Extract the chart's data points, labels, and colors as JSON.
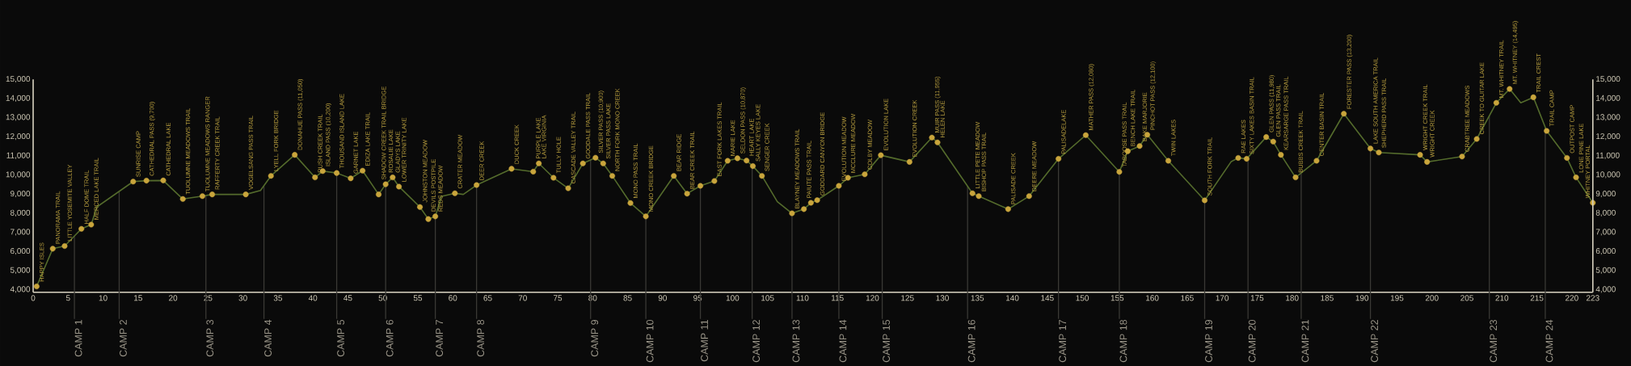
{
  "chart_data": {
    "type": "line",
    "xlim": [
      0,
      223
    ],
    "xticks": [
      0,
      5,
      10,
      15,
      20,
      25,
      30,
      35,
      40,
      45,
      50,
      55,
      60,
      65,
      70,
      75,
      80,
      85,
      90,
      95,
      100,
      105,
      110,
      115,
      120,
      125,
      130,
      135,
      140,
      145,
      150,
      155,
      160,
      165,
      170,
      175,
      180,
      185,
      190,
      195,
      200,
      205,
      210,
      215,
      220,
      223
    ],
    "ylim": [
      3860,
      15000
    ],
    "yticks": [
      {
        "value": 4000,
        "label": "4,000"
      },
      {
        "value": 5000,
        "label": "5,000"
      },
      {
        "value": 6000,
        "label": "6,000"
      },
      {
        "value": 7000,
        "label": "7,000"
      },
      {
        "value": 8000,
        "label": "8,000"
      },
      {
        "value": 9000,
        "label": "9,000"
      },
      {
        "value": 10000,
        "label": "10,000"
      },
      {
        "value": 11000,
        "label": "11,000"
      },
      {
        "value": 12000,
        "label": "12,000"
      },
      {
        "value": 13000,
        "label": "13,000"
      },
      {
        "value": 14000,
        "label": "14,000"
      },
      {
        "value": 15000,
        "label": "15,000"
      }
    ],
    "y2lim": [
      3860,
      15000
    ],
    "y2ticks": [
      {
        "value": 4000,
        "label": "4,000"
      },
      {
        "value": 5000,
        "label": "5,000"
      },
      {
        "value": 6000,
        "label": "6,000"
      },
      {
        "value": 7000,
        "label": "7,000"
      },
      {
        "value": 8000,
        "label": "8,000"
      },
      {
        "value": 9000,
        "label": "9,000"
      },
      {
        "value": 10000,
        "label": "10,000"
      },
      {
        "value": 11000,
        "label": "11,000"
      },
      {
        "value": 12000,
        "label": "12,000"
      },
      {
        "value": 13000,
        "label": "13,000"
      },
      {
        "value": 14000,
        "label": "14,000"
      },
      {
        "value": 15000,
        "label": "15,000"
      }
    ],
    "series": [
      {
        "marker": "none",
        "color": "#546b2c",
        "x": [
          0.5,
          2.8,
          4.5,
          6.9,
          8.3,
          9.1,
          14.3,
          16.2,
          18.6,
          21.4,
          24.2,
          25.6,
          30.4,
          32.5,
          34.0,
          37.4,
          40.3,
          41.4,
          43.4,
          45.4,
          47.1,
          49.4,
          50.4,
          51.4,
          52.3,
          55.3,
          56.5,
          57.5,
          58.4,
          60.3,
          61.5,
          63.4,
          68.4,
          71.5,
          72.3,
          74.4,
          76.5,
          78.6,
          80.4,
          81.5,
          82.8,
          85.4,
          87.6,
          91.6,
          93.5,
          95.4,
          97.4,
          99.3,
          100.7,
          102.0,
          102.9,
          104.2,
          106.4,
          108.5,
          110.2,
          111.2,
          112.1,
          115.2,
          116.5,
          118.9,
          121.2,
          125.3,
          128.5,
          129.3,
          134.3,
          135.2,
          139.4,
          142.4,
          146.6,
          150.5,
          155.3,
          156.5,
          158.2,
          159.3,
          162.3,
          167.5,
          171.3,
          172.3,
          173.5,
          176.3,
          177.3,
          178.4,
          180.5,
          183.5,
          187.4,
          191.2,
          192.4,
          198.3,
          199.3,
          204.3,
          206.4,
          209.2,
          211.1,
          212.7,
          214.5,
          216.4,
          219.3,
          220.6,
          223
        ],
        "values": [
          4170,
          6140,
          6280,
          7180,
          7400,
          8320,
          9650,
          9700,
          9710,
          8740,
          8890,
          8980,
          8980,
          9190,
          9950,
          11050,
          9870,
          10200,
          10100,
          9820,
          10220,
          8980,
          9510,
          9870,
          9390,
          8320,
          7690,
          7830,
          8880,
          9040,
          8980,
          9470,
          10320,
          10170,
          10600,
          9850,
          9300,
          10600,
          10900,
          10600,
          9950,
          8530,
          7830,
          9950,
          9020,
          9430,
          9680,
          10740,
          10870,
          10750,
          10460,
          9950,
          8600,
          7990,
          8210,
          8540,
          8680,
          9430,
          9850,
          10030,
          11030,
          10680,
          11955,
          11700,
          9040,
          8890,
          8210,
          8890,
          10840,
          12080,
          10160,
          11240,
          11510,
          12100,
          10740,
          8670,
          10700,
          10890,
          10840,
          11980,
          11740,
          11050,
          9870,
          10740,
          13200,
          11380,
          11170,
          11050,
          10680,
          10960,
          11880,
          13770,
          14495,
          13770,
          14060,
          12300,
          10890,
          9870,
          8540
        ]
      },
      {
        "type": "scatter",
        "marker": "circle",
        "color": "#c9a53c",
        "x": [
          0.5,
          2.8,
          4.5,
          6.9,
          8.3,
          14.3,
          16.2,
          18.6,
          21.4,
          24.2,
          25.6,
          30.4,
          34.0,
          37.4,
          40.3,
          41.4,
          43.4,
          45.4,
          47.1,
          49.4,
          50.4,
          51.4,
          52.3,
          55.3,
          56.5,
          57.5,
          60.3,
          63.4,
          68.4,
          71.5,
          72.3,
          74.4,
          76.5,
          78.6,
          80.4,
          81.5,
          82.8,
          85.4,
          87.6,
          91.6,
          93.5,
          95.4,
          97.4,
          99.3,
          100.7,
          102.0,
          102.9,
          104.2,
          108.5,
          110.2,
          111.2,
          112.1,
          115.2,
          116.5,
          118.9,
          121.2,
          125.3,
          128.5,
          129.3,
          134.3,
          135.2,
          139.4,
          142.4,
          146.6,
          150.5,
          155.3,
          156.5,
          158.2,
          159.3,
          162.3,
          167.5,
          172.3,
          173.5,
          176.3,
          177.3,
          178.4,
          180.5,
          183.5,
          187.4,
          191.2,
          192.4,
          198.3,
          199.3,
          204.3,
          206.4,
          209.2,
          211.1,
          214.5,
          216.4,
          219.3,
          220.6,
          223
        ],
        "values": [
          4170,
          6140,
          6280,
          7180,
          7400,
          9650,
          9700,
          9710,
          8740,
          8890,
          8980,
          8980,
          9950,
          11050,
          9870,
          10200,
          10100,
          9820,
          10220,
          8980,
          9510,
          9870,
          9390,
          8320,
          7690,
          7830,
          9040,
          9470,
          10320,
          10170,
          10600,
          9850,
          9300,
          10600,
          10900,
          10600,
          9950,
          8530,
          7830,
          9950,
          9020,
          9430,
          9680,
          10740,
          10870,
          10750,
          10460,
          9950,
          7990,
          8210,
          8540,
          8680,
          9430,
          9850,
          10030,
          11030,
          10680,
          11955,
          11700,
          9040,
          8890,
          8210,
          8890,
          10840,
          12080,
          10160,
          11240,
          11510,
          12100,
          10740,
          8670,
          10890,
          10840,
          11980,
          11740,
          11050,
          9870,
          10740,
          13200,
          11380,
          11170,
          11050,
          10680,
          10960,
          11880,
          13770,
          14495,
          14060,
          12300,
          10890,
          9870,
          8540
        ]
      }
    ],
    "annotations": [
      {
        "text": "HAPPY ISLES",
        "x": 0.5,
        "y": 4170
      },
      {
        "text": "PANORAMA TRAIL",
        "x": 2.8,
        "y": 6140
      },
      {
        "text": "LITTLE YOSEMITE VALLEY",
        "x": 4.5,
        "y": 6280
      },
      {
        "text": "HALF DOME TRAIL",
        "x": 6.9,
        "y": 7180
      },
      {
        "text": "MERCED LAKE TRAIL",
        "x": 8.3,
        "y": 7400
      },
      {
        "text": "SUNRISE CAMP",
        "x": 14.3,
        "y": 9650
      },
      {
        "text": "CATHEDRAL PASS (9,700)",
        "x": 16.2,
        "y": 9700
      },
      {
        "text": "CATHEDRAL LAKE",
        "x": 18.6,
        "y": 9710
      },
      {
        "text": "TUOLUMNE MEADOWS TRAIL",
        "x": 21.4,
        "y": 8740
      },
      {
        "text": "TUOLUMNE MEADOWS RANGER",
        "x": 24.2,
        "y": 8890
      },
      {
        "text": "RAFFERTY CREEK TRAIL",
        "x": 25.6,
        "y": 8980
      },
      {
        "text": "VOGELSANG PASS TRAIL",
        "x": 30.4,
        "y": 8980
      },
      {
        "text": "LYELL FORK BRIDGE",
        "x": 34.0,
        "y": 9950
      },
      {
        "text": "DONAHUE PASS (11,050)",
        "x": 37.4,
        "y": 11050
      },
      {
        "text": "RUSH CREEK TRAIL",
        "x": 40.3,
        "y": 9870
      },
      {
        "text": "ISLAND PASS (10,200)",
        "x": 41.4,
        "y": 10200
      },
      {
        "text": "THOUSAND ISLAND LAKE",
        "x": 43.4,
        "y": 10100
      },
      {
        "text": "GARNET LAKE",
        "x": 45.4,
        "y": 9820
      },
      {
        "text": "EDIZA LAKE TRAIL",
        "x": 47.1,
        "y": 10220
      },
      {
        "text": "SHADOW CREEK TRAIL BRIDGE",
        "x": 49.4,
        "y": 8980
      },
      {
        "text": "ROSALIE LAKE",
        "x": 50.4,
        "y": 9510
      },
      {
        "text": "GLADYS LAKE",
        "x": 51.4,
        "y": 9870
      },
      {
        "text": "LOWER TRINITY LAKE",
        "x": 52.3,
        "y": 9390
      },
      {
        "text": "JOHNSTON MEADOW",
        "x": 55.3,
        "y": 8320
      },
      {
        "text": "DEVILS POSTPILE",
        "x": 56.5,
        "y": 7690
      },
      {
        "text": "REDS MEADOW",
        "x": 57.5,
        "y": 7830
      },
      {
        "text": "CRATER MEADOW",
        "x": 60.3,
        "y": 9040
      },
      {
        "text": "DEER CREEK",
        "x": 63.4,
        "y": 9470
      },
      {
        "text": "DUCK CREEK",
        "x": 68.4,
        "y": 10320
      },
      {
        "text": "PURPLE LAKE",
        "x": 71.5,
        "y": 10170
      },
      {
        "text": "LAKE VIRGINIA",
        "x": 72.3,
        "y": 10600
      },
      {
        "text": "TULLY HOLE",
        "x": 74.4,
        "y": 9850
      },
      {
        "text": "CASCADE VALLEY TRAIL",
        "x": 76.5,
        "y": 9300
      },
      {
        "text": "GOODALE PASS TRAIL",
        "x": 78.6,
        "y": 10600
      },
      {
        "text": "SILVER PASS (10,900)",
        "x": 80.4,
        "y": 10900
      },
      {
        "text": "SILVER PASS LAKE",
        "x": 81.5,
        "y": 10600
      },
      {
        "text": "NORTH FORK MONO CREEK",
        "x": 82.8,
        "y": 9950
      },
      {
        "text": "MONO PASS TRAIL",
        "x": 85.4,
        "y": 8530
      },
      {
        "text": "MONO CREEK BRIDGE",
        "x": 87.6,
        "y": 7830
      },
      {
        "text": "BEAR RIDGE",
        "x": 91.6,
        "y": 9950
      },
      {
        "text": "BEAR CREEK TRAIL",
        "x": 93.5,
        "y": 9020
      },
      {
        "text": "EAST FORK LAKES TRAIL",
        "x": 97.4,
        "y": 9680
      },
      {
        "text": "MARIE LAKE",
        "x": 99.3,
        "y": 10740
      },
      {
        "text": "SELDON PASS (10,870)",
        "x": 100.7,
        "y": 10870
      },
      {
        "text": "HEART LAKE",
        "x": 102.0,
        "y": 10750
      },
      {
        "text": "SALLY KEYES LAKE",
        "x": 102.9,
        "y": 10460
      },
      {
        "text": "SENGER CREEK",
        "x": 104.2,
        "y": 9950
      },
      {
        "text": "BLAYNEY MEADOWS TRAIL",
        "x": 108.5,
        "y": 7990
      },
      {
        "text": "PAIUTE PASS TRAIL",
        "x": 110.2,
        "y": 8210
      },
      {
        "text": "GODDARD CANYON BRIDGE",
        "x": 112.1,
        "y": 8680
      },
      {
        "text": "EVOLUTION MEADOW",
        "x": 115.2,
        "y": 9430
      },
      {
        "text": "MCCLURE MEADOW",
        "x": 116.5,
        "y": 9850
      },
      {
        "text": "COLBY MEADOW",
        "x": 118.9,
        "y": 10030
      },
      {
        "text": "EVOLUTION LAKE",
        "x": 121.2,
        "y": 11030
      },
      {
        "text": "EVOLUTION CREEK",
        "x": 125.3,
        "y": 10680
      },
      {
        "text": "MUIR PASS (11,955)",
        "x": 128.5,
        "y": 11955
      },
      {
        "text": "HELEN LAKE",
        "x": 129.3,
        "y": 11700
      },
      {
        "text": "LITTLE PETE MEADOW",
        "x": 134.3,
        "y": 9040
      },
      {
        "text": "BISHOP PASS TRAIL",
        "x": 135.2,
        "y": 8890
      },
      {
        "text": "PALISADE CREEK",
        "x": 139.4,
        "y": 8210
      },
      {
        "text": "DEERE MEADOW",
        "x": 142.4,
        "y": 8890
      },
      {
        "text": "PALISADELAKE",
        "x": 146.6,
        "y": 10840
      },
      {
        "text": "MATHER PASS (12,080)",
        "x": 150.5,
        "y": 12080
      },
      {
        "text": "TABOOSE PASS TRAIL",
        "x": 155.3,
        "y": 10160
      },
      {
        "text": "BENCH LAKE TRAIL",
        "x": 156.5,
        "y": 11240
      },
      {
        "text": "BAKE MARJORIE",
        "x": 158.2,
        "y": 11510
      },
      {
        "text": "PINCHOT PASS (12,100)",
        "x": 159.3,
        "y": 12100
      },
      {
        "text": "TWIN LAKES",
        "x": 162.3,
        "y": 10740
      },
      {
        "text": "SOUTH FORK TRAIL",
        "x": 167.5,
        "y": 8670
      },
      {
        "text": "RAE LAKES",
        "x": 172.3,
        "y": 10890
      },
      {
        "text": "SIXTY LAKES BASIN TRAIL",
        "x": 173.5,
        "y": 10840
      },
      {
        "text": "GLEN PASS (11,980)",
        "x": 176.3,
        "y": 11980
      },
      {
        "text": "GLEN PASS TRAIL",
        "x": 177.3,
        "y": 11740
      },
      {
        "text": "KEARSARGE PASS TRAIL",
        "x": 178.4,
        "y": 11050
      },
      {
        "text": "BUBBS CREEK TRAIL",
        "x": 180.5,
        "y": 9870
      },
      {
        "text": "CENTER BASIN TRAIL",
        "x": 183.5,
        "y": 10740
      },
      {
        "text": "FORESTER PASS (13,200)",
        "x": 187.4,
        "y": 13200
      },
      {
        "text": "LAKE SOUTH AMERICA TRAIL",
        "x": 191.2,
        "y": 11380
      },
      {
        "text": "SHEPHERD PASS TRAIL",
        "x": 192.4,
        "y": 11170
      },
      {
        "text": "WRIGHT CREEK TRAIL",
        "x": 198.3,
        "y": 11050
      },
      {
        "text": "WRIGHT CREEK",
        "x": 199.3,
        "y": 10680
      },
      {
        "text": "CRABTREE MEADOWS",
        "x": 204.3,
        "y": 10960
      },
      {
        "text": "CREEK TO GUITAR LAKE",
        "x": 206.4,
        "y": 11880
      },
      {
        "text": "MT. WHITNEY TRAIL",
        "x": 209.2,
        "y": 13770
      },
      {
        "text": "MT. WHITNEY (14,495)",
        "x": 211.1,
        "y": 14495
      },
      {
        "text": "TRAIL CREST",
        "x": 214.5,
        "y": 14060
      },
      {
        "text": "TRAIL CAMP",
        "x": 216.4,
        "y": 12300
      },
      {
        "text": "OUTPOST CAMP",
        "x": 219.3,
        "y": 10890
      },
      {
        "text": "LONE PINE LAKE",
        "x": 220.6,
        "y": 9870
      },
      {
        "text": "WHITNEY PORTAL",
        "x": 223,
        "y": 8540
      }
    ],
    "ref_lines": [
      {
        "axis": "x",
        "value": 5.9,
        "label": "CAMP 1",
        "color": "#3a3935"
      },
      {
        "axis": "x",
        "value": 12.3,
        "label": "CAMP 2",
        "color": "#3a3935"
      },
      {
        "axis": "x",
        "value": 24.7,
        "label": "CAMP 3",
        "color": "#3a3935"
      },
      {
        "axis": "x",
        "value": 33.0,
        "label": "CAMP 4",
        "color": "#3a3935"
      },
      {
        "axis": "x",
        "value": 43.4,
        "label": "CAMP 5",
        "color": "#3a3935"
      },
      {
        "axis": "x",
        "value": 50.4,
        "label": "CAMP 6",
        "color": "#3a3935"
      },
      {
        "axis": "x",
        "value": 57.5,
        "label": "CAMP 7",
        "color": "#3a3935"
      },
      {
        "axis": "x",
        "value": 63.4,
        "label": "CAMP 8",
        "color": "#3a3935"
      },
      {
        "axis": "x",
        "value": 79.7,
        "label": "CAMP 9",
        "color": "#3a3935"
      },
      {
        "axis": "x",
        "value": 87.6,
        "label": "CAMP 10",
        "color": "#3a3935"
      },
      {
        "axis": "x",
        "value": 95.4,
        "label": "CAMP 11",
        "color": "#3a3935"
      },
      {
        "axis": "x",
        "value": 102.8,
        "label": "CAMP 12",
        "color": "#3a3935"
      },
      {
        "axis": "x",
        "value": 108.5,
        "label": "CAMP 13",
        "color": "#3a3935"
      },
      {
        "axis": "x",
        "value": 115.2,
        "label": "CAMP 14",
        "color": "#3a3935"
      },
      {
        "axis": "x",
        "value": 121.4,
        "label": "CAMP 15",
        "color": "#3a3935"
      },
      {
        "axis": "x",
        "value": 133.6,
        "label": "CAMP 16",
        "color": "#3a3935"
      },
      {
        "axis": "x",
        "value": 146.6,
        "label": "CAMP 17",
        "color": "#3a3935"
      },
      {
        "axis": "x",
        "value": 155.3,
        "label": "CAMP 18",
        "color": "#3a3935"
      },
      {
        "axis": "x",
        "value": 167.5,
        "label": "CAMP 19",
        "color": "#3a3935"
      },
      {
        "axis": "x",
        "value": 173.7,
        "label": "CAMP 20",
        "color": "#3a3935"
      },
      {
        "axis": "x",
        "value": 181.3,
        "label": "CAMP 21",
        "color": "#3a3935"
      },
      {
        "axis": "x",
        "value": 191.2,
        "label": "CAMP 22",
        "color": "#3a3935"
      },
      {
        "axis": "x",
        "value": 208.2,
        "label": "CAMP 23",
        "color": "#3a3935"
      },
      {
        "axis": "x",
        "value": 216.2,
        "label": "CAMP 24",
        "color": "#3a3935"
      }
    ]
  }
}
